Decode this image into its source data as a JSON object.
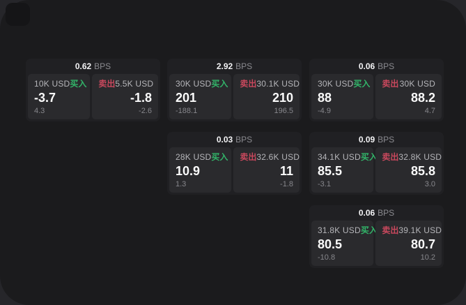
{
  "labels": {
    "bps_suffix": "BPS",
    "buy": "买入",
    "sell": "卖出",
    "currency_unit": "USD"
  },
  "colors": {
    "buy_green": "#32b469",
    "sell_red": "#c9485d",
    "panel_bg": "#1b1b1d",
    "card_bg": "#202023",
    "tile_bg": "#2a2a2d"
  },
  "cards": [
    {
      "bps": "0.62",
      "buy": {
        "amount": "10K USD",
        "value": "-3.7",
        "delta": "4.3"
      },
      "sell": {
        "amount": "5.5K USD",
        "value": "-1.8",
        "delta": "-2.6"
      }
    },
    {
      "bps": "2.92",
      "buy": {
        "amount": "30K USD",
        "value": "201",
        "delta": "-188.1"
      },
      "sell": {
        "amount": "30.1K USD",
        "value": "210",
        "delta": "196.5"
      }
    },
    {
      "bps": "0.06",
      "buy": {
        "amount": "30K USD",
        "value": "88",
        "delta": "-4.9"
      },
      "sell": {
        "amount": "30K USD",
        "value": "88.2",
        "delta": "4.7"
      }
    },
    {
      "bps": "0.03",
      "buy": {
        "amount": "28K USD",
        "value": "10.9",
        "delta": "1.3"
      },
      "sell": {
        "amount": "32.6K USD",
        "value": "11",
        "delta": "-1.8"
      }
    },
    {
      "bps": "0.09",
      "buy": {
        "amount": "34.1K USD",
        "value": "85.5",
        "delta": "-3.1"
      },
      "sell": {
        "amount": "32.8K USD",
        "value": "85.8",
        "delta": "3.0"
      }
    },
    {
      "bps": "0.06",
      "buy": {
        "amount": "31.8K USD",
        "value": "80.5",
        "delta": "-10.8"
      },
      "sell": {
        "amount": "39.1K USD",
        "value": "80.7",
        "delta": "10.2"
      }
    }
  ]
}
